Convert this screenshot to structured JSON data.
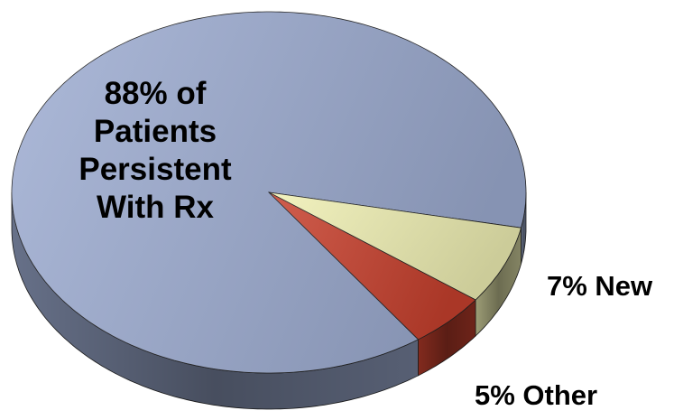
{
  "chart_data": {
    "type": "pie",
    "values": [
      88,
      7,
      5
    ],
    "value_labels": [
      "88% of Patients Persistent With Rx",
      "7% New",
      "5% Other"
    ],
    "colors": [
      "#9eadd2",
      "#f0f0b4",
      "#c8412e"
    ]
  }
}
